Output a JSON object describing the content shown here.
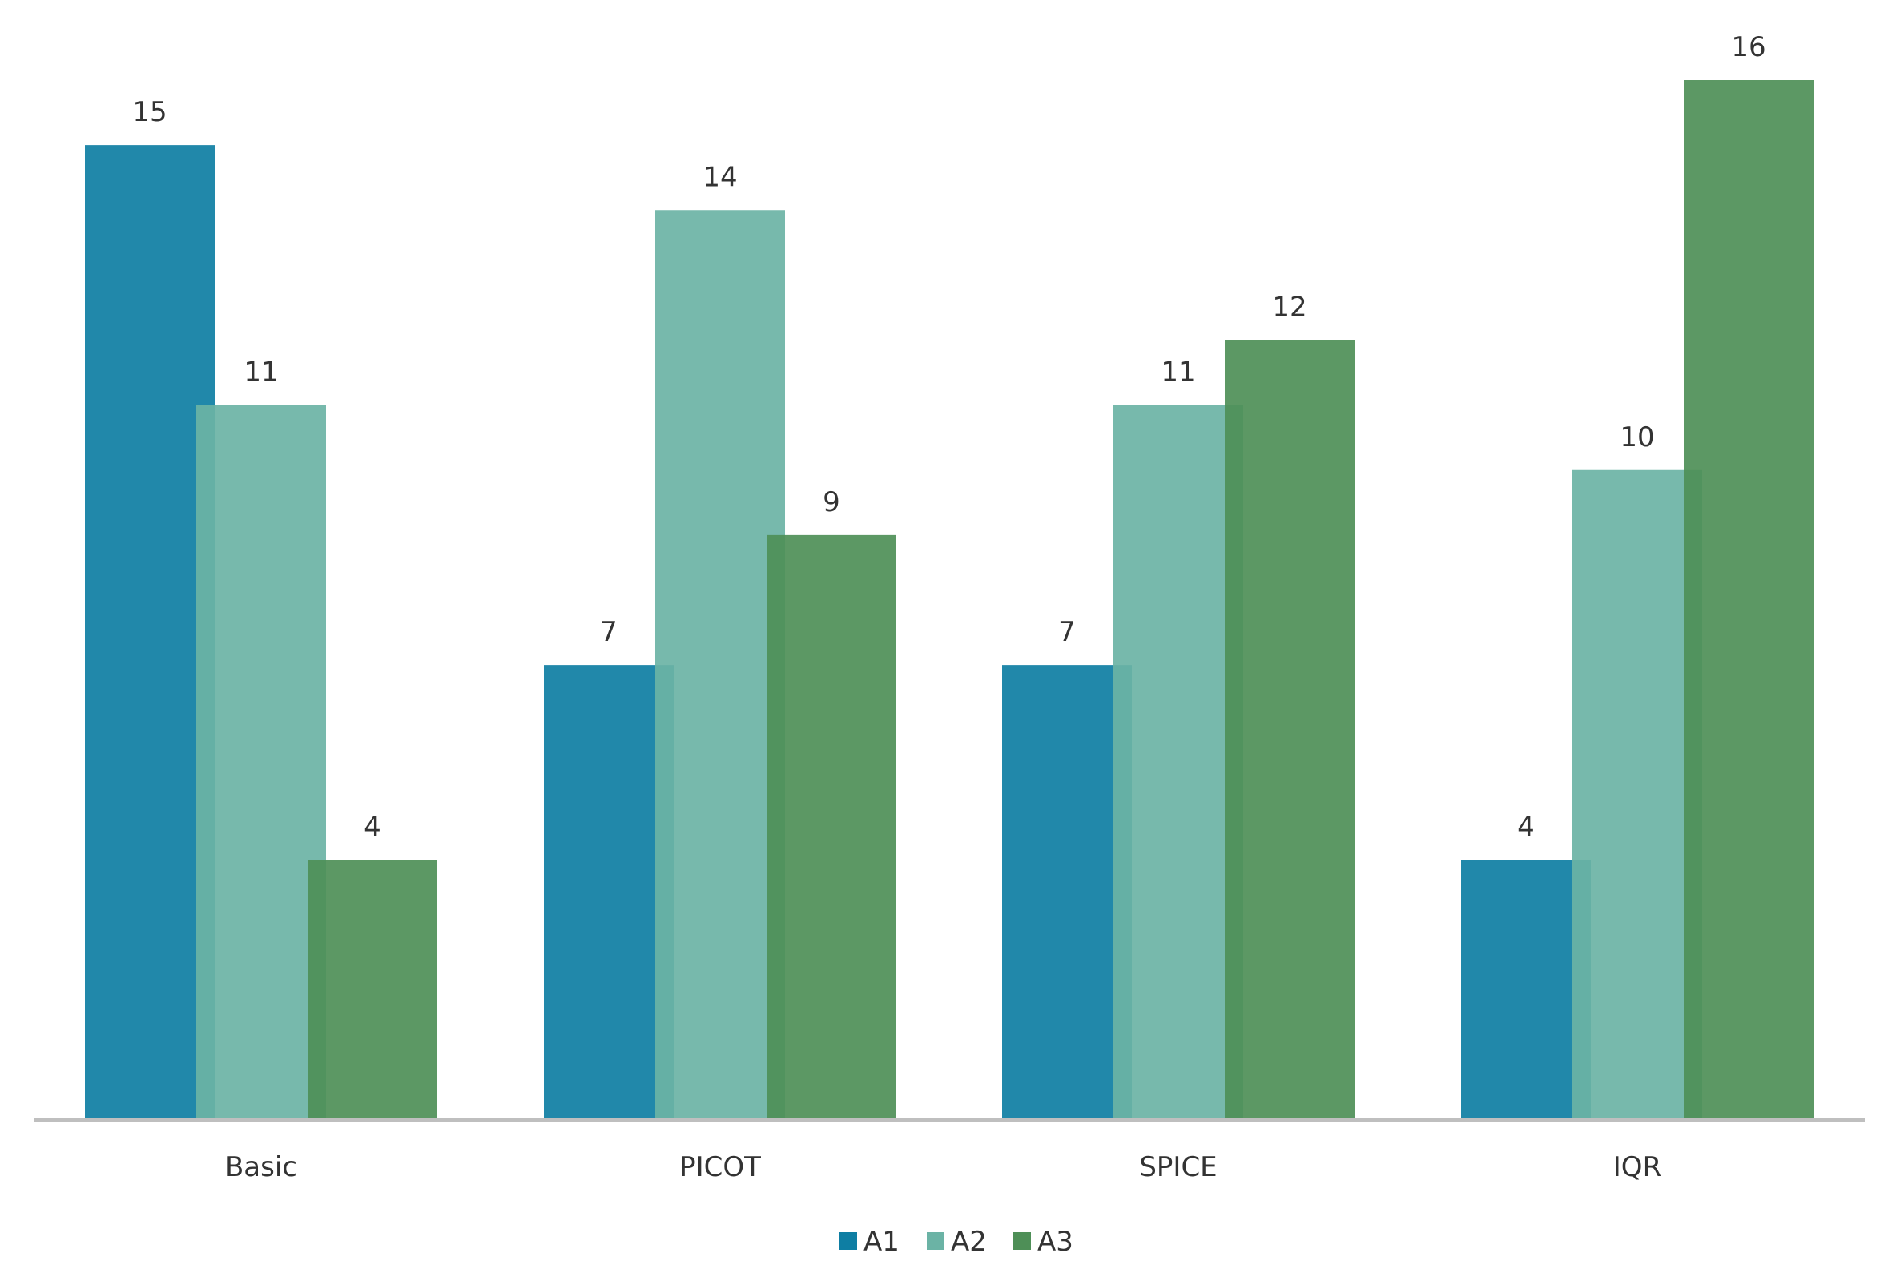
{
  "chart_data": {
    "type": "bar",
    "title": "",
    "xlabel": "",
    "ylabel": "",
    "categories": [
      "Basic",
      "PICOT",
      "SPICE",
      "IQR"
    ],
    "series": [
      {
        "name": "A1",
        "values": [
          15,
          7,
          7,
          4
        ],
        "color": "#0e7ea3"
      },
      {
        "name": "A2",
        "values": [
          11,
          14,
          11,
          10
        ],
        "color": "#6bb3a5"
      },
      {
        "name": "A3",
        "values": [
          4,
          9,
          12,
          16
        ],
        "color": "#4e8f57"
      }
    ],
    "ylim": [
      0,
      16
    ],
    "grid": false,
    "bar_overlap": true,
    "data_labels": true,
    "legend": "bottom-center",
    "axis_color": "#bfbfbf"
  }
}
